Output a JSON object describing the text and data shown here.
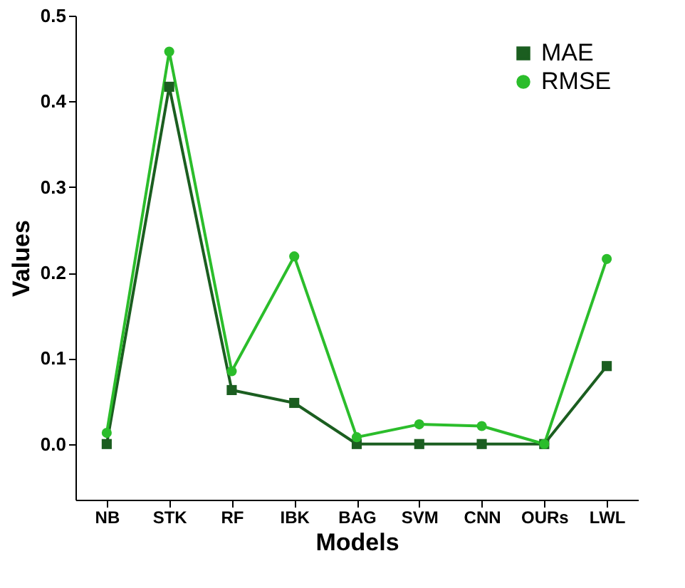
{
  "chart_data": {
    "type": "line",
    "xlabel": "Models",
    "ylabel": "Values",
    "categories": [
      "NB",
      "STK",
      "RF",
      "IBK",
      "BAG",
      "SVM",
      "CNN",
      "OURs",
      "LWL"
    ],
    "series": [
      {
        "name": "MAE",
        "color": "#1b5e20",
        "marker": "square",
        "values": [
          0.0,
          0.417,
          0.063,
          0.048,
          0.0,
          0.0,
          0.0,
          0.0,
          0.091
        ]
      },
      {
        "name": "RMSE",
        "color": "#2bbd2b",
        "marker": "circle",
        "values": [
          0.013,
          0.458,
          0.085,
          0.219,
          0.008,
          0.023,
          0.021,
          0.0,
          0.216
        ]
      }
    ],
    "ylim": [
      -0.065,
      0.5
    ],
    "yticks": [
      {
        "value": 0,
        "label": "0.0"
      },
      {
        "value": 0.1,
        "label": "0.1"
      },
      {
        "value": 0.2,
        "label": "0.2"
      },
      {
        "value": 0.3,
        "label": "0.3"
      },
      {
        "value": 0.4,
        "label": "0.4"
      },
      {
        "value": 0.5,
        "label": "0.5"
      }
    ],
    "grid": false,
    "legend": "top right",
    "line_style": "solid"
  }
}
